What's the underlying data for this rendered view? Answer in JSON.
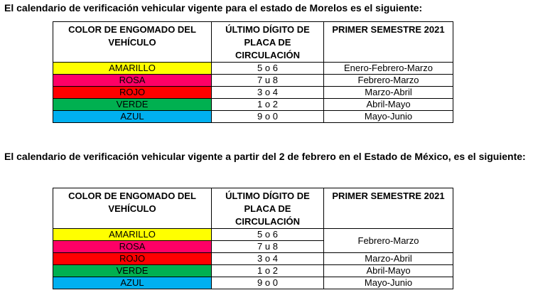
{
  "morelos": {
    "heading": "El calendario de verificación vehicular vigente para el estado de Morelos es el siguiente:",
    "headers": [
      "COLOR DE ENGOMADO DEL VEHÍCULO",
      "ÚLTIMO DÍGITO DE PLACA DE CIRCULACIÓN",
      "PRIMER  SEMESTRE 2021"
    ],
    "rows": [
      {
        "color": "AMARILLO",
        "bg": "#ffff00",
        "digits": "5 o 6",
        "period": "Enero-Febrero-Marzo"
      },
      {
        "color": "ROSA",
        "bg": "#ff0066",
        "digits": "7 u 8",
        "period": "Febrero-Marzo"
      },
      {
        "color": "ROJO",
        "bg": "#ff0000",
        "digits": "3 o 4",
        "period": "Marzo-Abril"
      },
      {
        "color": "VERDE",
        "bg": "#00b050",
        "digits": "1 o 2",
        "period": "Abril-Mayo"
      },
      {
        "color": "AZUL",
        "bg": "#00b0f0",
        "digits": "9 o 0",
        "period": "Mayo-Junio"
      }
    ]
  },
  "edomex": {
    "heading": "El calendario de verificación vehicular vigente a partir del 2 de febrero en el Estado de México, es el siguiente:",
    "headers": [
      "COLOR DE ENGOMADO DEL VEHÍCULO",
      "ÚLTIMO DÍGITO DE PLACA DE CIRCULACIÓN",
      "PRIMER  SEMESTRE 2021"
    ],
    "rows": [
      {
        "color": "AMARILLO",
        "bg": "#ffff00",
        "digits": "5 o 6",
        "period": "Febrero-Marzo"
      },
      {
        "color": "ROSA",
        "bg": "#ff0066",
        "digits": "7 u 8",
        "period": ""
      },
      {
        "color": "ROJO",
        "bg": "#ff0000",
        "digits": "3 o 4",
        "period": "Marzo-Abril"
      },
      {
        "color": "VERDE",
        "bg": "#00b050",
        "digits": "1 o 2",
        "period": "Abril-Mayo"
      },
      {
        "color": "AZUL",
        "bg": "#00b0f0",
        "digits": "9 o 0",
        "period": "Mayo-Junio"
      }
    ]
  }
}
